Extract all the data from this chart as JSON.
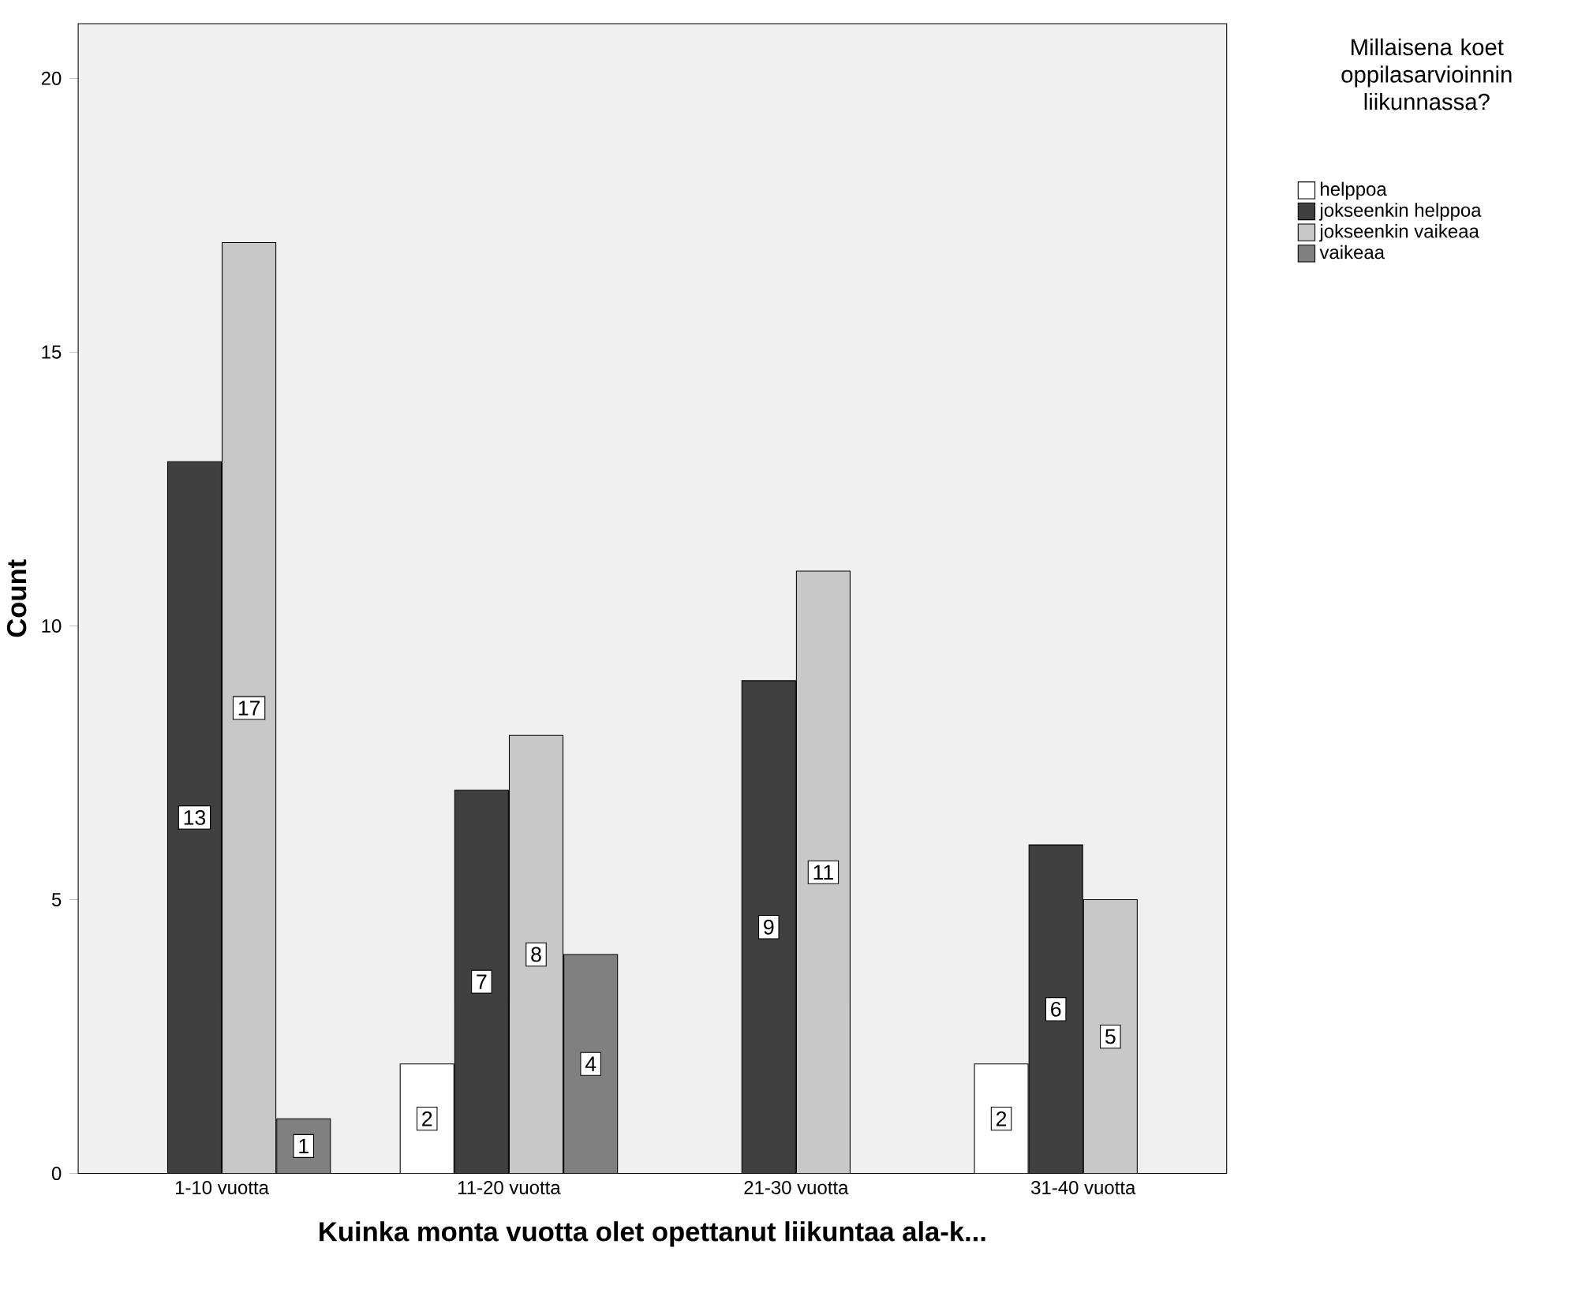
{
  "chart_data": {
    "type": "bar",
    "xlabel": "Kuinka monta vuotta olet opettanut liikuntaa ala-k...",
    "ylabel": "Count",
    "legend_title": "Millaisena koet oppilasarvioinnin liikunnassa?",
    "categories": [
      "1-10 vuotta",
      "11-20 vuotta",
      "21-30 vuotta",
      "31-40 vuotta"
    ],
    "series": [
      {
        "name": "helppoa",
        "color": "#ffffff",
        "values": [
          null,
          2,
          null,
          2
        ]
      },
      {
        "name": "jokseenkin helppoa",
        "color": "#404040",
        "values": [
          13,
          7,
          9,
          6
        ]
      },
      {
        "name": "jokseenkin vaikeaa",
        "color": "#c8c8c8",
        "values": [
          17,
          8,
          11,
          5
        ]
      },
      {
        "name": "vaikeaa",
        "color": "#808080",
        "values": [
          1,
          4,
          null,
          null
        ]
      }
    ],
    "ylim": [
      0,
      21
    ],
    "yticks": [
      0,
      5,
      10,
      15,
      20
    ],
    "data_labels": true,
    "legend": "right",
    "grid": false
  }
}
